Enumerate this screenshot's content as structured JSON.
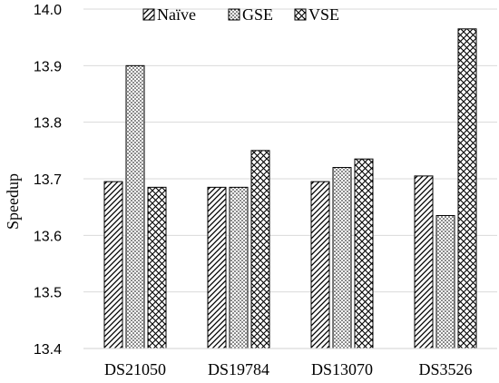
{
  "chart_data": {
    "type": "bar",
    "title": "",
    "xlabel": "",
    "ylabel": "Speedup",
    "ylim": [
      13.4,
      14.0
    ],
    "yticks": [
      "13.4",
      "13.5",
      "13.6",
      "13.7",
      "13.8",
      "13.9",
      "14.0"
    ],
    "categories": [
      "DS21050",
      "DS19784",
      "DS13070",
      "DS3526"
    ],
    "series": [
      {
        "name": "Naïve",
        "pattern": "diagonal-hatch",
        "values": [
          13.695,
          13.685,
          13.695,
          13.705
        ]
      },
      {
        "name": "GSE",
        "pattern": "dots",
        "values": [
          13.9,
          13.685,
          13.72,
          13.635
        ]
      },
      {
        "name": "VSE",
        "pattern": "crosshatch",
        "values": [
          13.685,
          13.75,
          13.735,
          13.965
        ]
      }
    ],
    "legend_position": "top",
    "grid": true,
    "bar_edge_color": "#000000",
    "grid_color": "#d9d9d9"
  }
}
